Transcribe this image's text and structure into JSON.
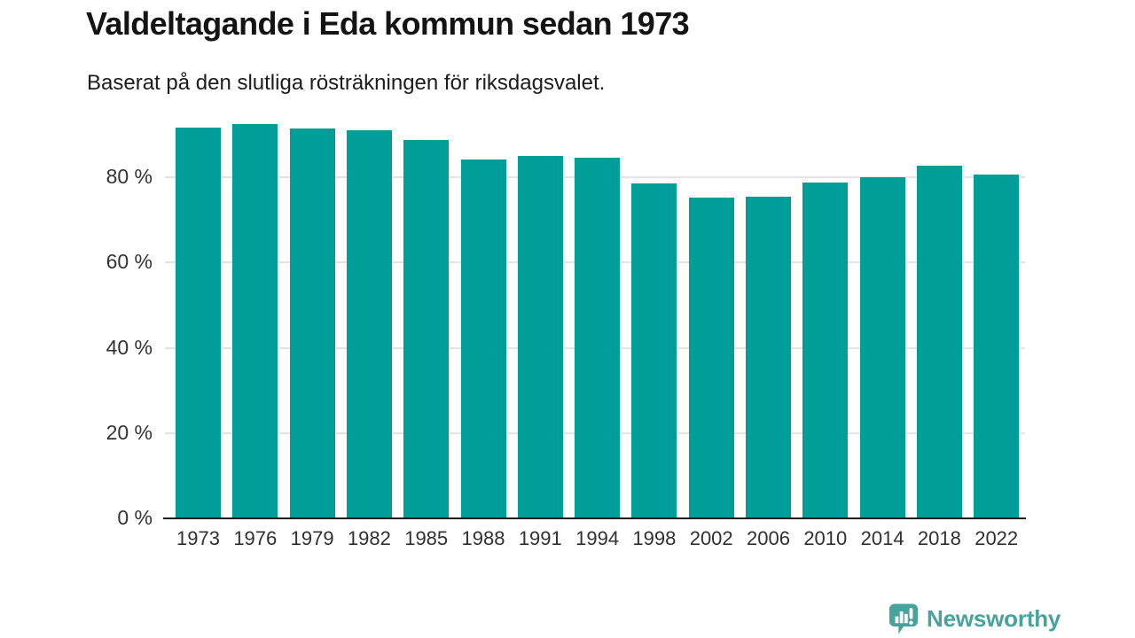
{
  "header": {
    "title": "Valdeltagande i Eda kommun sedan 1973",
    "subtitle": "Baserat på den slutliga rösträkningen för riksdagsvalet."
  },
  "chart_data": {
    "type": "bar",
    "title": "Valdeltagande i Eda kommun sedan 1973",
    "subtitle": "Baserat på den slutliga rösträkningen för riksdagsvalet.",
    "categories": [
      "1973",
      "1976",
      "1979",
      "1982",
      "1985",
      "1988",
      "1991",
      "1994",
      "1998",
      "2002",
      "2006",
      "2010",
      "2014",
      "2018",
      "2022"
    ],
    "values": [
      91.5,
      92.3,
      91.2,
      90.8,
      88.6,
      83.9,
      84.9,
      84.5,
      78.3,
      75.0,
      75.3,
      78.5,
      79.9,
      82.5,
      80.5
    ],
    "unit": "%",
    "xlabel": "",
    "ylabel": "",
    "ylim": [
      0,
      100
    ],
    "yticks": [
      {
        "value": 0,
        "label": "0 %"
      },
      {
        "value": 20,
        "label": "20 %"
      },
      {
        "value": 40,
        "label": "40 %"
      },
      {
        "value": 60,
        "label": "60 %"
      },
      {
        "value": 80,
        "label": "80 %"
      }
    ],
    "grid": true,
    "legend": "none",
    "bar_color": "#009e98",
    "axis_color": "#1f1f1f",
    "grid_color": "#e3e3e3"
  },
  "branding": {
    "logo_text": "Newsworthy",
    "logo_color": "#47a39c",
    "logo_icon": "newsworthy-chart-bubble-icon"
  }
}
